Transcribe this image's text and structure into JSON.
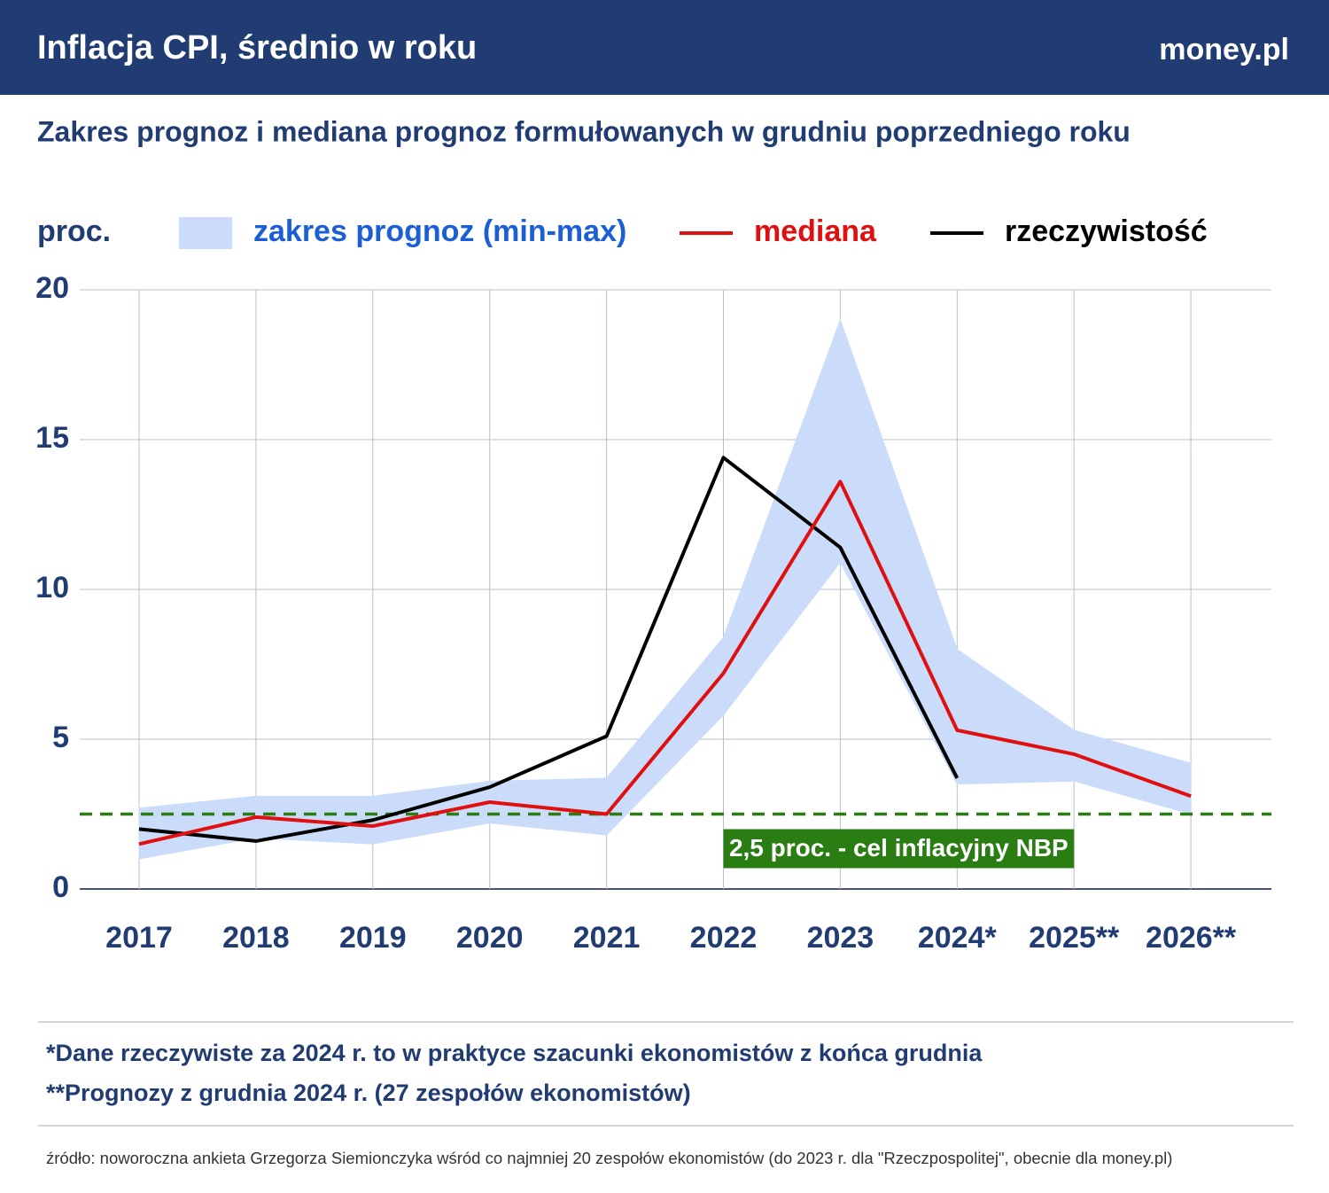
{
  "header": {
    "title": "Inflacja CPI, średnio w roku",
    "logo": "money.pl"
  },
  "chart_data": {
    "type": "line",
    "subtitle": "Zakres prognoz i mediana prognoz formułowanych w grudniu poprzedniego roku",
    "ylabel": "proc.",
    "categories": [
      "2017",
      "2018",
      "2019",
      "2020",
      "2021",
      "2022",
      "2023",
      "2024*",
      "2025**",
      "2026**"
    ],
    "range": {
      "name": "zakres prognoz (min-max)",
      "color": "#cadcf9",
      "label_color": "#1a5fd6",
      "low": [
        1.0,
        1.7,
        1.5,
        2.2,
        1.8,
        5.8,
        10.9,
        3.5,
        3.6,
        2.5
      ],
      "high": [
        2.7,
        3.1,
        3.1,
        3.6,
        3.7,
        8.4,
        19.0,
        8.0,
        5.3,
        4.2
      ]
    },
    "series": [
      {
        "name": "mediana",
        "color": "#e01010",
        "values": [
          1.5,
          2.4,
          2.1,
          2.9,
          2.5,
          7.2,
          13.6,
          5.3,
          4.5,
          3.1
        ]
      },
      {
        "name": "rzeczywistość",
        "color": "#000000",
        "values": [
          2.0,
          1.6,
          2.3,
          3.4,
          5.1,
          14.4,
          11.4,
          3.7,
          null,
          null
        ]
      }
    ],
    "target": {
      "value": 2.5,
      "label": "2,5 proc. - cel inflacyjny NBP",
      "color": "#2a7d12"
    },
    "ylim": [
      0,
      20
    ],
    "yticks": [
      0,
      5,
      10,
      15,
      20
    ],
    "grid": true
  },
  "footnotes": [
    "*Dane rzeczywiste za 2024 r. to w praktyce szacunki ekonomistów z końca grudnia",
    "**Prognozy z grudnia 2024 r. (27 zespołów ekonomistów)"
  ],
  "source": "źródło: noworoczna ankieta Grzegorza Siemionczyka wśród co najmniej 20 zespołów ekonomistów (do 2023 r. dla \"Rzeczpospolitej\", obecnie dla money.pl)"
}
